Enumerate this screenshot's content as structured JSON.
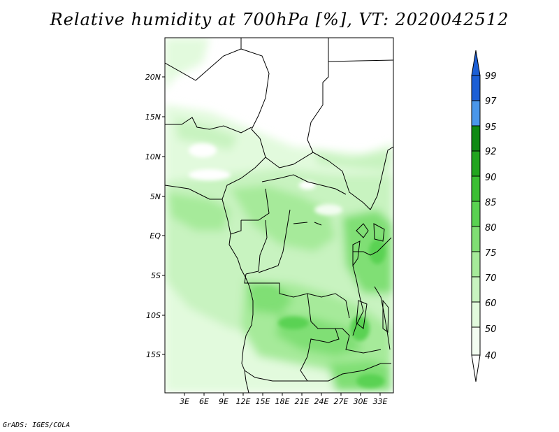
{
  "title": "Relative humidity at 700hPa [%], VT: 2020042512",
  "credit": "GrADS: IGES/COLA",
  "map": {
    "lat_labels": [
      "20N",
      "15N",
      "10N",
      "5N",
      "EQ",
      "5S",
      "10S",
      "15S"
    ],
    "lon_labels": [
      "3E",
      "6E",
      "9E",
      "12E",
      "15E",
      "18E",
      "21E",
      "24E",
      "27E",
      "30E",
      "33E"
    ]
  },
  "colorbar": {
    "labels": [
      "99",
      "97",
      "95",
      "92",
      "90",
      "85",
      "80",
      "75",
      "70",
      "60",
      "50",
      "40"
    ],
    "colors": [
      "#1c5fd6",
      "#2b74e0",
      "#4a97ea",
      "#0f8a14",
      "#22a51f",
      "#3bbf33",
      "#5ad252",
      "#80df74",
      "#a6ea9a",
      "#c8f3c0",
      "#e2fadd",
      "#f3fdf1"
    ]
  },
  "palette": {
    "background": "#ffffff",
    "border": "#000000"
  }
}
